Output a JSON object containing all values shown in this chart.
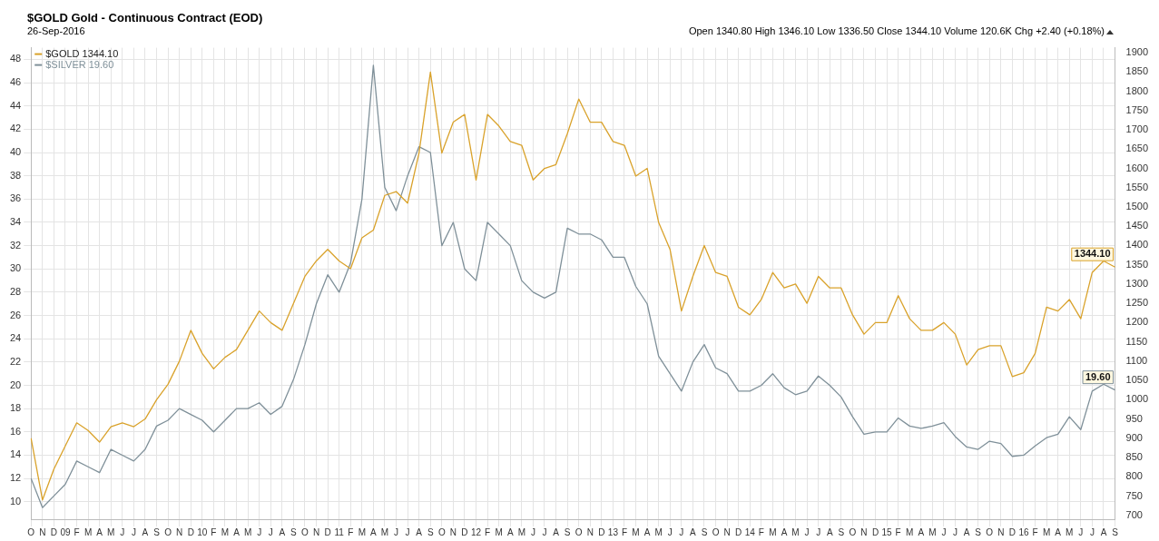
{
  "chart_data": {
    "type": "line",
    "title": "$GOLD Gold - Continuous Contract (EOD)",
    "subtitle": "26-Sep-2016",
    "annotations": [
      "Open 1340.80 High 1346.10 Low 1336.50 Close 1344.10 Volume 120.6K Chg +2.40 (+0.18%)"
    ],
    "categories": [
      "O",
      "N",
      "D",
      "09",
      "F",
      "M",
      "A",
      "M",
      "J",
      "J",
      "A",
      "S",
      "O",
      "N",
      "D",
      "10",
      "F",
      "M",
      "A",
      "M",
      "J",
      "J",
      "A",
      "S",
      "O",
      "N",
      "D",
      "11",
      "F",
      "M",
      "A",
      "M",
      "J",
      "J",
      "A",
      "S",
      "O",
      "N",
      "D",
      "12",
      "F",
      "M",
      "A",
      "M",
      "J",
      "J",
      "A",
      "S",
      "O",
      "N",
      "D",
      "13",
      "F",
      "M",
      "A",
      "M",
      "J",
      "J",
      "A",
      "S",
      "O",
      "N",
      "D",
      "14",
      "F",
      "M",
      "A",
      "M",
      "J",
      "J",
      "A",
      "S",
      "O",
      "N",
      "D",
      "15",
      "F",
      "M",
      "A",
      "M",
      "J",
      "J",
      "A",
      "S",
      "O",
      "N",
      "D",
      "16",
      "F",
      "M",
      "A",
      "M",
      "J",
      "J",
      "A",
      "S"
    ],
    "series": [
      {
        "name": "$GOLD 1344.10",
        "color": "#d9a22b",
        "axis": "y2",
        "value_labels": [
          null,
          null,
          null,
          null,
          null,
          null,
          null,
          null,
          null,
          null,
          null,
          null,
          null,
          null,
          null,
          null,
          null,
          null,
          null,
          null,
          null,
          null,
          null,
          null,
          null,
          null,
          null,
          null,
          null,
          null,
          null,
          null,
          null,
          null,
          null,
          null,
          null,
          null,
          null,
          null,
          null,
          null,
          null,
          null,
          null,
          null,
          null,
          null,
          null,
          null,
          null,
          null,
          null,
          null,
          null,
          null,
          null,
          null,
          null,
          null,
          null,
          null,
          null,
          null,
          null,
          null,
          null,
          null,
          null,
          null,
          null,
          null,
          null,
          null,
          null,
          null,
          null,
          null,
          null,
          null,
          null,
          null,
          null,
          null,
          null,
          null,
          null,
          null,
          null,
          null,
          null,
          null,
          null,
          null,
          null,
          "1344.10"
        ],
        "values": [
          900,
          740,
          820,
          880,
          940,
          920,
          890,
          930,
          940,
          930,
          950,
          1000,
          1040,
          1100,
          1180,
          1120,
          1080,
          1110,
          1130,
          1180,
          1230,
          1200,
          1180,
          1250,
          1320,
          1360,
          1390,
          1360,
          1340,
          1420,
          1440,
          1530,
          1540,
          1510,
          1640,
          1850,
          1640,
          1720,
          1740,
          1570,
          1740,
          1710,
          1670,
          1660,
          1570,
          1600,
          1610,
          1690,
          1780,
          1720,
          1720,
          1670,
          1660,
          1580,
          1600,
          1460,
          1390,
          1230,
          1320,
          1400,
          1330,
          1320,
          1240,
          1220,
          1260,
          1330,
          1290,
          1300,
          1250,
          1320,
          1290,
          1290,
          1220,
          1170,
          1200,
          1200,
          1270,
          1210,
          1180,
          1180,
          1200,
          1170,
          1090,
          1130,
          1140,
          1140,
          1060,
          1070,
          1120,
          1240,
          1230,
          1260,
          1210,
          1330,
          1360,
          1344.1
        ]
      },
      {
        "name": "$SILVER 19.60",
        "color": "#7f9099",
        "value_labels": [
          null,
          null,
          null,
          null,
          null,
          null,
          null,
          null,
          null,
          null,
          null,
          null,
          null,
          null,
          null,
          null,
          null,
          null,
          null,
          null,
          null,
          null,
          null,
          null,
          null,
          null,
          null,
          null,
          null,
          null,
          null,
          null,
          null,
          null,
          null,
          null,
          null,
          null,
          null,
          null,
          null,
          null,
          null,
          null,
          null,
          null,
          null,
          null,
          null,
          null,
          null,
          null,
          null,
          null,
          null,
          null,
          null,
          null,
          null,
          null,
          null,
          null,
          null,
          null,
          null,
          null,
          null,
          null,
          null,
          null,
          null,
          null,
          null,
          null,
          null,
          null,
          null,
          null,
          null,
          null,
          null,
          null,
          null,
          null,
          null,
          null,
          null,
          null,
          null,
          null,
          null,
          null,
          null,
          null,
          null,
          "19.60"
        ],
        "values": [
          12,
          9.5,
          10.5,
          11.5,
          13.5,
          13,
          12.5,
          14.5,
          14,
          13.5,
          14.5,
          16.5,
          17,
          18,
          17.5,
          17,
          16,
          17,
          18,
          18,
          18.5,
          17.5,
          18.2,
          20.5,
          23.5,
          27,
          29.5,
          28,
          30.5,
          36,
          47.5,
          37,
          35,
          38,
          40.5,
          40,
          32,
          34,
          30,
          29,
          34,
          33,
          32,
          29,
          28,
          27.5,
          28,
          33.5,
          33,
          33,
          32.5,
          31,
          31,
          28.5,
          27,
          22.5,
          21,
          19.5,
          22,
          23.5,
          21.5,
          21,
          19.5,
          19.5,
          20,
          21,
          19.8,
          19.2,
          19.5,
          20.8,
          20,
          19,
          17.3,
          15.8,
          16,
          16,
          17.2,
          16.5,
          16.3,
          16.5,
          16.8,
          15.6,
          14.7,
          14.5,
          15.2,
          15,
          13.9,
          14,
          14.8,
          15.5,
          15.8,
          17.3,
          16.2,
          19.5,
          20.1,
          19.6
        ]
      }
    ],
    "ylim": [
      8.5,
      49
    ],
    "yticks": [
      10,
      12,
      14,
      16,
      18,
      20,
      22,
      24,
      26,
      28,
      30,
      32,
      34,
      36,
      38,
      40,
      42,
      44,
      46,
      48
    ],
    "y2lim": [
      690,
      1913
    ],
    "y2ticks": [
      700,
      750,
      800,
      850,
      900,
      950,
      1000,
      1050,
      1100,
      1150,
      1200,
      1250,
      1300,
      1350,
      1400,
      1450,
      1500,
      1550,
      1600,
      1650,
      1700,
      1750,
      1800,
      1850,
      1900
    ],
    "grid": true,
    "legend": "top left",
    "marker": "none",
    "line_style": "solid"
  }
}
